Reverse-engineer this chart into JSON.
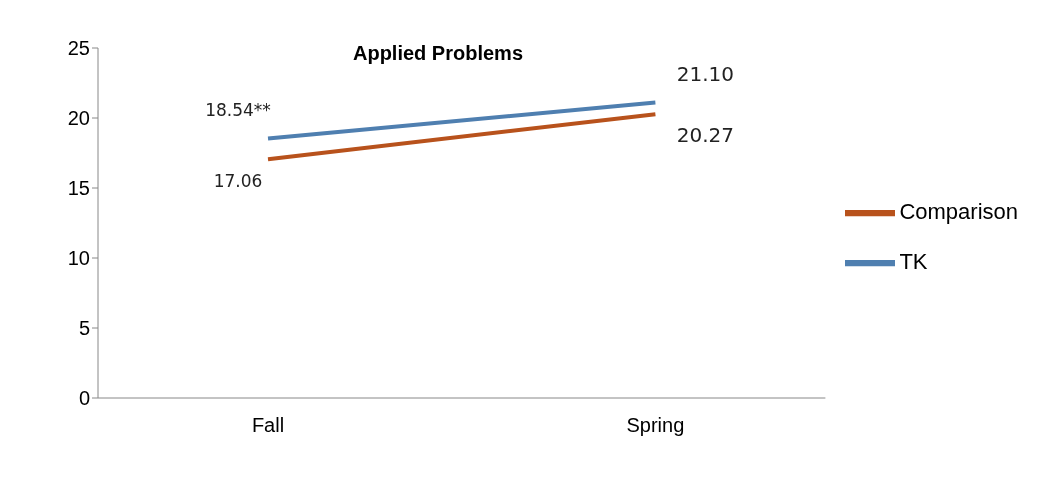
{
  "chart_data": {
    "type": "line",
    "title": "Applied Problems",
    "categories": [
      "Fall",
      "Spring"
    ],
    "series": [
      {
        "name": "TK",
        "color": "#4f7fb0",
        "values": [
          18.54,
          21.1
        ],
        "value_labels": [
          "18.54**",
          "21.10"
        ]
      },
      {
        "name": "Comparison",
        "color": "#b8521c",
        "values": [
          17.06,
          20.27
        ],
        "value_labels": [
          "17.06",
          "20.27"
        ]
      }
    ],
    "ylim": [
      0,
      25
    ],
    "yticks": [
      0,
      5,
      10,
      15,
      20,
      25
    ],
    "grid": false,
    "legend": "right",
    "marker": "none",
    "line_style": "solid"
  }
}
